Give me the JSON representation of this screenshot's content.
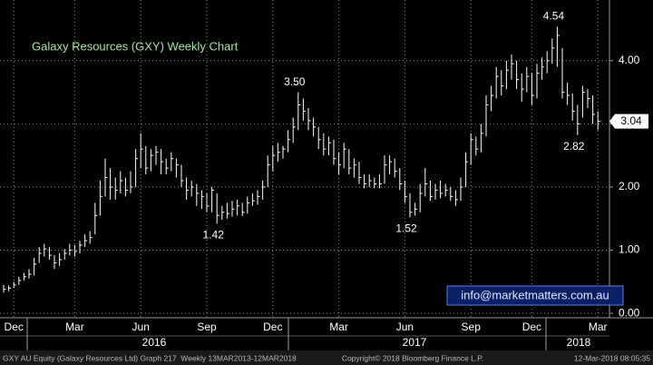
{
  "chart_data": {
    "type": "ohlc",
    "title": "Galaxy Resources (GXY) Weekly Chart",
    "color": "#ffffff",
    "categories": [
      null,
      null,
      "Dec",
      null,
      null,
      null,
      null,
      null,
      null,
      null,
      null,
      null,
      null,
      null,
      "Mar",
      null,
      null,
      null,
      null,
      null,
      null,
      null,
      null,
      null,
      null,
      null,
      null,
      "Jun",
      null,
      null,
      null,
      null,
      null,
      null,
      null,
      null,
      null,
      null,
      null,
      null,
      "Sep",
      null,
      null,
      null,
      null,
      null,
      null,
      null,
      null,
      null,
      null,
      null,
      null,
      "Dec",
      null,
      null,
      null,
      null,
      null,
      null,
      null,
      null,
      null,
      null,
      null,
      null,
      "Mar",
      null,
      null,
      null,
      null,
      null,
      null,
      null,
      null,
      null,
      null,
      null,
      null,
      "Jun",
      null,
      null,
      null,
      null,
      null,
      null,
      null,
      null,
      null,
      null,
      null,
      null,
      "Sep",
      null,
      null,
      null,
      null,
      null,
      null,
      null,
      null,
      null,
      null,
      null,
      "Dec",
      null,
      null,
      null,
      null,
      null,
      null,
      null,
      null,
      null,
      null,
      null,
      null,
      "Mar"
    ],
    "high": [
      0.45,
      0.44,
      0.5,
      0.58,
      0.64,
      0.7,
      0.88,
      1.05,
      1.1,
      1.05,
      0.92,
      0.95,
      1.02,
      1.1,
      1.08,
      1.15,
      1.25,
      1.3,
      1.75,
      2.1,
      2.45,
      2.3,
      2.15,
      2.25,
      2.15,
      2.25,
      2.6,
      2.85,
      2.65,
      2.6,
      2.65,
      2.6,
      2.45,
      2.55,
      2.45,
      2.35,
      2.15,
      2.1,
      2.05,
      1.95,
      1.9,
      2.0,
      1.9,
      1.7,
      1.75,
      1.78,
      1.8,
      1.75,
      1.85,
      1.9,
      1.95,
      2.1,
      2.5,
      2.65,
      2.7,
      2.65,
      2.9,
      3.1,
      3.5,
      3.4,
      3.25,
      3.1,
      2.95,
      2.85,
      2.8,
      2.75,
      2.55,
      2.7,
      2.6,
      2.45,
      2.4,
      2.2,
      2.2,
      2.15,
      2.2,
      2.5,
      2.5,
      2.45,
      2.3,
      2.1,
      1.9,
      1.75,
      2.05,
      2.3,
      2.1,
      2.05,
      2.1,
      2.05,
      2.0,
      1.95,
      2.15,
      2.55,
      2.85,
      2.8,
      3.0,
      3.45,
      3.6,
      3.9,
      3.85,
      4.0,
      4.1,
      4.0,
      3.8,
      3.9,
      3.8,
      3.95,
      4.05,
      4.15,
      4.35,
      4.54,
      4.2,
      3.65,
      3.48,
      3.3,
      3.6,
      3.55,
      3.45,
      3.2
    ],
    "low": [
      0.33,
      0.35,
      0.4,
      0.45,
      0.52,
      0.55,
      0.6,
      0.8,
      0.9,
      0.85,
      0.7,
      0.75,
      0.85,
      0.92,
      0.9,
      0.95,
      1.05,
      1.1,
      1.25,
      1.55,
      1.85,
      1.8,
      1.8,
      1.9,
      1.85,
      1.9,
      2.0,
      2.3,
      2.2,
      2.25,
      2.35,
      2.2,
      2.2,
      2.25,
      2.15,
      2.0,
      1.8,
      1.85,
      1.7,
      1.65,
      1.6,
      1.6,
      1.42,
      1.48,
      1.5,
      1.53,
      1.55,
      1.54,
      1.58,
      1.7,
      1.72,
      1.8,
      2.0,
      2.25,
      2.4,
      2.45,
      2.55,
      2.7,
      2.9,
      3.05,
      2.9,
      2.8,
      2.6,
      2.5,
      2.5,
      2.35,
      2.2,
      2.3,
      2.2,
      2.15,
      2.05,
      1.98,
      2.0,
      1.98,
      1.98,
      2.05,
      2.2,
      2.15,
      1.95,
      1.75,
      1.52,
      1.55,
      1.6,
      1.85,
      1.78,
      1.8,
      1.82,
      1.85,
      1.78,
      1.7,
      1.78,
      2.0,
      2.35,
      2.5,
      2.55,
      2.8,
      3.2,
      3.4,
      3.45,
      3.55,
      3.7,
      3.55,
      3.35,
      3.5,
      3.3,
      3.4,
      3.7,
      3.8,
      3.95,
      3.9,
      3.4,
      3.3,
      3.05,
      2.82,
      3.1,
      3.25,
      3.0,
      2.9
    ],
    "close": [
      0.38,
      0.4,
      0.45,
      0.52,
      0.58,
      0.62,
      0.78,
      0.95,
      1.02,
      0.92,
      0.8,
      0.85,
      0.95,
      1.0,
      0.98,
      1.08,
      1.15,
      1.2,
      1.55,
      1.85,
      2.15,
      2.0,
      1.95,
      2.1,
      1.95,
      2.0,
      2.45,
      2.6,
      2.3,
      2.5,
      2.55,
      2.4,
      2.3,
      2.45,
      2.35,
      2.1,
      1.95,
      2.0,
      1.9,
      1.85,
      1.7,
      1.95,
      1.55,
      1.6,
      1.58,
      1.65,
      1.7,
      1.6,
      1.75,
      1.78,
      1.85,
      2.0,
      2.35,
      2.5,
      2.55,
      2.6,
      2.75,
      2.95,
      3.3,
      3.2,
      3.05,
      2.95,
      2.75,
      2.6,
      2.7,
      2.45,
      2.35,
      2.6,
      2.3,
      2.35,
      2.15,
      2.05,
      2.1,
      2.05,
      2.05,
      2.35,
      2.4,
      2.25,
      2.05,
      1.85,
      1.6,
      1.65,
      1.9,
      2.05,
      1.85,
      1.95,
      1.9,
      1.95,
      1.85,
      1.8,
      2.0,
      2.4,
      2.75,
      2.6,
      2.85,
      3.3,
      3.45,
      3.75,
      3.6,
      3.85,
      3.95,
      3.7,
      3.55,
      3.75,
      3.45,
      3.8,
      3.9,
      4.0,
      4.2,
      4.4,
      3.5,
      3.45,
      3.2,
      3.0,
      3.5,
      3.4,
      3.15,
      3.04
    ],
    "ylim": [
      -0.07,
      4.96
    ],
    "yticks": [
      {
        "value": 0,
        "label": "0.00"
      },
      {
        "value": 1,
        "label": "1.00"
      },
      {
        "value": 2,
        "label": "2.00"
      },
      {
        "value": 3,
        "label": "3.00"
      },
      {
        "value": 4,
        "label": "4.00"
      }
    ],
    "grid": true,
    "year_labels": [
      "2016",
      "2017",
      "2018"
    ],
    "annotations": [
      {
        "value": 3.5,
        "label": "3.50"
      },
      {
        "value": 1.42,
        "label": "1.42"
      },
      {
        "value": 1.52,
        "label": "1.52"
      },
      {
        "value": 4.54,
        "label": "4.54"
      },
      {
        "value": 2.82,
        "label": "2.82"
      }
    ],
    "last_price": {
      "value": 3.04,
      "label": "3.04"
    }
  },
  "watermark": "info@marketmatters.com.au",
  "footer": {
    "left": "GXY AU Equity (Galaxy Resources Ltd) Graph 217  Weekly 13MAR2013-12MAR2018",
    "center": "Copyright© 2018 Bloomberg Finance L.P.",
    "right": "12-Mar-2018 08:05:35"
  }
}
